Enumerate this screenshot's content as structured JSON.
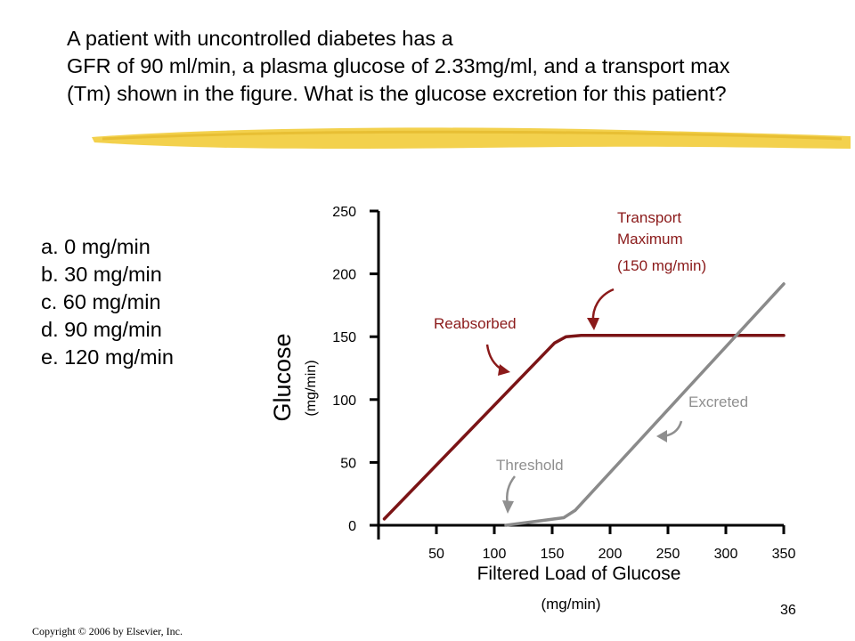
{
  "question": {
    "lines": [
      "A patient with uncontrolled diabetes has a",
      "GFR of 90 ml/min, a plasma glucose of 2.33mg/ml, and a transport max",
      "(Tm) shown in the figure. What is the glucose excretion for this patient?"
    ]
  },
  "options": [
    "a. 0 mg/min",
    "b. 30 mg/min",
    "c. 60 mg/min",
    "d. 90 mg/min",
    "e. 120 mg/min"
  ],
  "footer": {
    "copyright": "Copyright © 2006 by Elsevier, Inc.",
    "page_number": "36"
  },
  "colors": {
    "highlight": "#f2cc3a",
    "reabsorbed": "#7b1416",
    "excreted": "#8a8a8a",
    "annotation_red": "#8b1a1a",
    "annotation_gray": "#8f8f8f"
  },
  "chart_data": {
    "type": "line",
    "xlabel": "Filtered Load of Glucose",
    "xlabel_unit": "(mg/min)",
    "ylabel": "Glucose",
    "ylabel_unit": "(mg/min)",
    "xlim": [
      0,
      350
    ],
    "ylim": [
      0,
      250
    ],
    "x_ticks": [
      50,
      100,
      150,
      200,
      250,
      300,
      350
    ],
    "y_ticks": [
      0,
      50,
      100,
      150,
      200,
      250
    ],
    "grid": false,
    "series": [
      {
        "name": "Reabsorbed",
        "color": "#7b1416",
        "points": [
          [
            5,
            5
          ],
          [
            152,
            145
          ],
          [
            162,
            150
          ],
          [
            175,
            151
          ],
          [
            350,
            151
          ]
        ]
      },
      {
        "name": "Excreted",
        "color": "#8a8a8a",
        "points": [
          [
            110,
            0
          ],
          [
            160,
            6
          ],
          [
            170,
            12
          ],
          [
            350,
            192
          ]
        ]
      }
    ],
    "annotations": [
      {
        "id": "transport-max-line1",
        "text": "Transport"
      },
      {
        "id": "transport-max-line2",
        "text": "Maximum"
      },
      {
        "id": "transport-max-line3",
        "text": "(150 mg/min)"
      },
      {
        "id": "reabsorbed-label",
        "text": "Reabsorbed"
      },
      {
        "id": "excreted-label",
        "text": "Excreted"
      },
      {
        "id": "threshold-label",
        "text": "Threshold"
      }
    ]
  }
}
